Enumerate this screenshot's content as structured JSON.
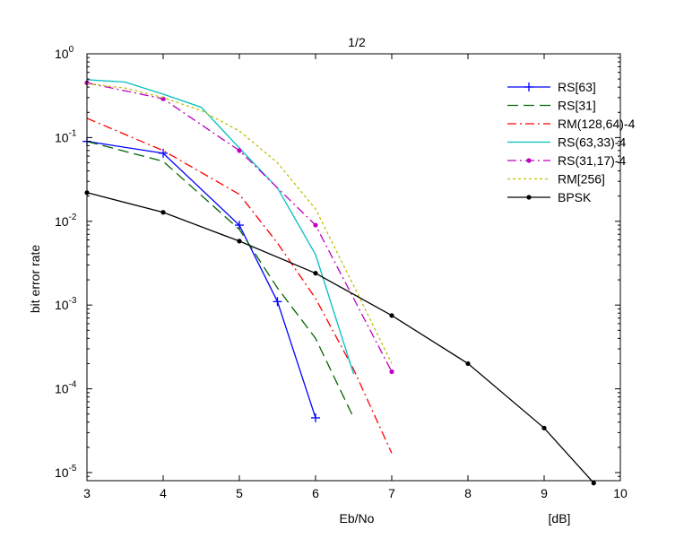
{
  "chart_data": {
    "type": "line",
    "title": "1/2",
    "xlabel": "Eb/No",
    "ylabel": "bit error rate",
    "x_unit_label": "[dB]",
    "xlim": [
      3,
      10
    ],
    "ylim": [
      8e-06,
      1
    ],
    "yscale": "log",
    "grid": false,
    "legend_position": "top-right",
    "x_ticks": [
      3,
      4,
      5,
      6,
      7,
      8,
      9,
      10
    ],
    "y_ticks": [
      {
        "value": 1,
        "base": "10",
        "exp": "0"
      },
      {
        "value": 0.1,
        "base": "10",
        "exp": "-1"
      },
      {
        "value": 0.01,
        "base": "10",
        "exp": "-2"
      },
      {
        "value": 0.001,
        "base": "10",
        "exp": "-3"
      },
      {
        "value": 0.0001,
        "base": "10",
        "exp": "-4"
      },
      {
        "value": 1e-05,
        "base": "10",
        "exp": "-5"
      }
    ],
    "series": [
      {
        "name": "RS[63]",
        "color": "#0000ff",
        "dash": "solid",
        "marker": "plus",
        "x": [
          3,
          4,
          5,
          5.5,
          6
        ],
        "y": [
          0.09,
          0.065,
          0.009,
          0.0011,
          4.5e-05
        ]
      },
      {
        "name": "RS[31]",
        "color": "#006400",
        "dash": "dashed",
        "marker": "none",
        "x": [
          3,
          4,
          5,
          5.5,
          6,
          6.5
        ],
        "y": [
          0.09,
          0.052,
          0.008,
          0.0016,
          0.0004,
          4.5e-05
        ]
      },
      {
        "name": "RM(128,64)-4",
        "color": "#ff0000",
        "dash": "dashdot",
        "marker": "none",
        "x": [
          3,
          4,
          5,
          5.5,
          6,
          6.5,
          7
        ],
        "y": [
          0.17,
          0.07,
          0.021,
          0.0055,
          0.0012,
          0.00017,
          1.7e-05
        ]
      },
      {
        "name": "RS(63,33)-4",
        "color": "#00bfbf",
        "dash": "solid",
        "marker": "none",
        "x": [
          3,
          3.5,
          4,
          4.5,
          5,
          5.5,
          6,
          6.5
        ],
        "y": [
          0.49,
          0.46,
          0.33,
          0.23,
          0.075,
          0.025,
          0.004,
          0.00015
        ]
      },
      {
        "name": "RS(31,17)-4",
        "color": "#bf00bf",
        "dash": "dashdot",
        "marker": "dot",
        "x": [
          3,
          4,
          5,
          6,
          7
        ],
        "y": [
          0.45,
          0.29,
          0.07,
          0.009,
          0.00016
        ]
      },
      {
        "name": "RM[256]",
        "color": "#bfbf00",
        "dash": "dotted",
        "marker": "none",
        "x": [
          3,
          3.5,
          4,
          4.5,
          5,
          5.5,
          6,
          6.5,
          7
        ],
        "y": [
          0.44,
          0.39,
          0.3,
          0.21,
          0.12,
          0.05,
          0.014,
          0.0017,
          0.0002
        ]
      },
      {
        "name": "BPSK",
        "color": "#000000",
        "dash": "solid",
        "marker": "dot",
        "x": [
          3,
          4,
          5,
          6,
          7,
          8,
          9,
          9.65
        ],
        "y": [
          0.022,
          0.0128,
          0.0058,
          0.0024,
          0.00075,
          0.0002,
          3.4e-05,
          7.5e-06
        ]
      }
    ]
  }
}
